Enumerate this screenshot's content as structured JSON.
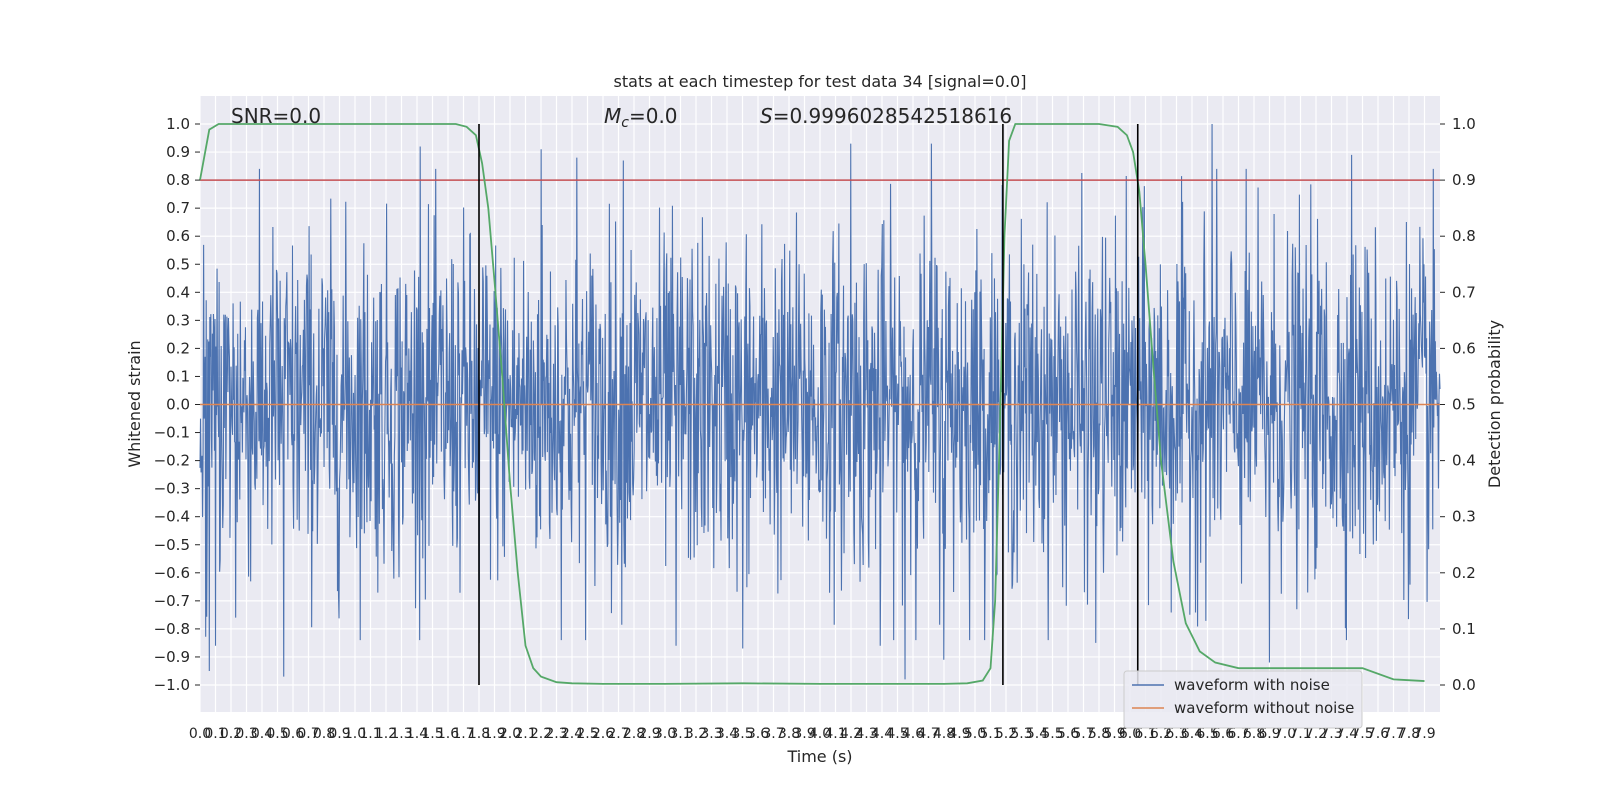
{
  "chart_data": {
    "type": "line",
    "title": "stats at each timestep for test data 34 [signal=0.0]",
    "xlabel": "Time (s)",
    "ylabel": "Whitened strain",
    "y2label": "Detection probability",
    "xlim": [
      0.0,
      8.0
    ],
    "ylim": [
      -1.1,
      1.1
    ],
    "y2lim": [
      -0.05,
      1.05
    ],
    "grid": true,
    "legend_position": "lower-right",
    "annotations": [
      {
        "text": "SNR=0.0",
        "x": 0.2,
        "y": 1.02
      },
      {
        "text": "M_c=0.0",
        "x": 2.6,
        "y": 1.02
      },
      {
        "text": "S=0.9996028542518616",
        "x": 3.6,
        "y": 1.02
      }
    ],
    "y_ticks": [
      "1.0",
      "0.9",
      "0.8",
      "0.7",
      "0.6",
      "0.5",
      "0.4",
      "0.3",
      "0.2",
      "0.1",
      "0.0",
      "−0.1",
      "−0.2",
      "−0.3",
      "−0.4",
      "−0.5",
      "−0.6",
      "−0.7",
      "−0.8",
      "−0.9",
      "−1.0"
    ],
    "y2_ticks": [
      "1.0",
      "0.9",
      "0.8",
      "0.7",
      "0.6",
      "0.5",
      "0.4",
      "0.3",
      "0.2",
      "0.1",
      "0.0"
    ],
    "x_ticks": [
      "0.0",
      "0.1",
      "0.2",
      "0.3",
      "0.4",
      "0.5",
      "0.6",
      "0.7",
      "0.8",
      "0.9",
      "1.0",
      "1.1",
      "1.2",
      "1.3",
      "1.4",
      "1.5",
      "1.6",
      "1.7",
      "1.8",
      "1.9",
      "2.0",
      "2.1",
      "2.2",
      "2.3",
      "2.4",
      "2.5",
      "2.6",
      "2.7",
      "2.8",
      "2.9",
      "3.0",
      "3.1",
      "3.2",
      "3.3",
      "3.4",
      "3.5",
      "3.6",
      "3.7",
      "3.8",
      "3.9",
      "4.0",
      "4.1",
      "4.2",
      "4.3",
      "4.4",
      "4.5",
      "4.6",
      "4.7",
      "4.8",
      "4.9",
      "5.0",
      "5.1",
      "5.2",
      "5.3",
      "5.4",
      "5.5",
      "5.6",
      "5.7",
      "5.8",
      "5.9",
      "6.0",
      "6.1",
      "6.2",
      "6.3",
      "6.4",
      "6.5",
      "6.6",
      "6.7",
      "6.8",
      "6.9",
      "7.0",
      "7.1",
      "7.2",
      "7.3",
      "7.4",
      "7.5",
      "7.6",
      "7.7",
      "7.8",
      "7.9"
    ],
    "threshold": {
      "y2": 0.9,
      "color": "#c44e52"
    },
    "vlines": [
      1.8,
      5.18,
      6.05
    ],
    "series": [
      {
        "name": "waveform with noise",
        "axis": "left",
        "color": "#4c72b0",
        "noise_amplitude": 0.3,
        "x_range": [
          0.0,
          8.0
        ],
        "peak_points": [
          {
            "x": 0.06,
            "y": -0.95
          },
          {
            "x": 0.1,
            "y": -0.86
          },
          {
            "x": 0.23,
            "y": -0.76
          },
          {
            "x": 0.54,
            "y": -0.97
          },
          {
            "x": 1.42,
            "y": 0.92
          },
          {
            "x": 1.8,
            "y": -0.85
          },
          {
            "x": 2.2,
            "y": 0.91
          },
          {
            "x": 2.43,
            "y": 0.88
          },
          {
            "x": 2.73,
            "y": 0.87
          },
          {
            "x": 3.07,
            "y": -0.86
          },
          {
            "x": 3.5,
            "y": -0.87
          },
          {
            "x": 4.2,
            "y": 0.93
          },
          {
            "x": 4.39,
            "y": -0.86
          },
          {
            "x": 4.55,
            "y": -0.98
          },
          {
            "x": 4.72,
            "y": 0.93
          },
          {
            "x": 4.8,
            "y": -0.91
          },
          {
            "x": 5.78,
            "y": -0.85
          },
          {
            "x": 6.53,
            "y": 1.0
          },
          {
            "x": 6.9,
            "y": -0.92
          },
          {
            "x": 7.43,
            "y": 0.89
          }
        ]
      },
      {
        "name": "waveform without noise",
        "axis": "left",
        "color": "#dd8452",
        "x": [
          0.0,
          8.0
        ],
        "y": [
          0.0,
          0.0
        ]
      },
      {
        "name": "detection probability",
        "axis": "right",
        "color": "#55a868",
        "x": [
          0.0,
          0.06,
          0.12,
          0.3,
          0.8,
          1.2,
          1.5,
          1.65,
          1.72,
          1.78,
          1.82,
          1.86,
          1.9,
          1.95,
          2.0,
          2.05,
          2.1,
          2.15,
          2.2,
          2.3,
          2.4,
          2.6,
          3.0,
          3.5,
          4.0,
          4.5,
          4.8,
          4.95,
          5.05,
          5.1,
          5.13,
          5.16,
          5.19,
          5.22,
          5.26,
          5.32,
          5.4,
          5.6,
          5.8,
          5.92,
          5.98,
          6.02,
          6.06,
          6.1,
          6.15,
          6.2,
          6.28,
          6.36,
          6.45,
          6.55,
          6.7,
          6.9,
          7.1,
          7.3,
          7.5,
          7.7,
          7.9
        ],
        "y": [
          0.9,
          0.99,
          1.0,
          1.0,
          1.0,
          1.0,
          1.0,
          1.0,
          0.995,
          0.98,
          0.93,
          0.85,
          0.72,
          0.55,
          0.36,
          0.2,
          0.07,
          0.03,
          0.015,
          0.005,
          0.003,
          0.002,
          0.002,
          0.003,
          0.002,
          0.002,
          0.002,
          0.003,
          0.008,
          0.03,
          0.15,
          0.45,
          0.8,
          0.97,
          1.0,
          1.0,
          1.0,
          1.0,
          1.0,
          0.995,
          0.98,
          0.95,
          0.88,
          0.75,
          0.57,
          0.4,
          0.22,
          0.11,
          0.06,
          0.04,
          0.03,
          0.03,
          0.03,
          0.03,
          0.03,
          0.01,
          0.007
        ]
      }
    ]
  }
}
